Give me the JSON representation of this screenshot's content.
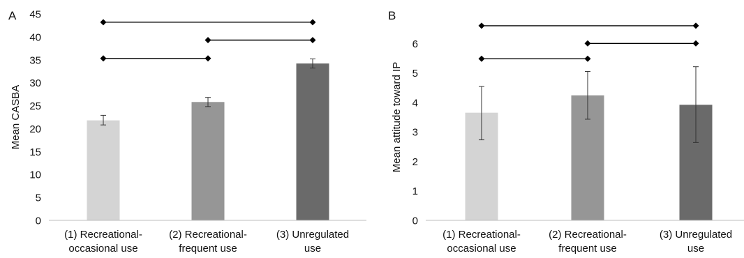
{
  "chart_data": [
    {
      "panel": "A",
      "type": "bar",
      "ylabel": "Mean CASBA",
      "ylim": [
        0,
        45
      ],
      "yticks": [
        "0",
        "5",
        "10",
        "15",
        "20",
        "25",
        "30",
        "35",
        "40",
        "45"
      ],
      "categories": [
        [
          "(1) Recreational-",
          "occasional use"
        ],
        [
          "(2) Recreational-",
          "frequent use"
        ],
        [
          "(3) Unregulated",
          "use"
        ]
      ],
      "values": [
        21.8,
        25.8,
        34.2
      ],
      "error_low": [
        20.8,
        24.8,
        33.2
      ],
      "error_high": [
        22.9,
        26.8,
        35.2
      ],
      "bar_colors": [
        "#d4d4d4",
        "#969696",
        "#6a6a6a"
      ],
      "significance_brackets": [
        {
          "from": 1,
          "to": 3,
          "level": 43.2
        },
        {
          "from": 2,
          "to": 3,
          "level": 39.3
        },
        {
          "from": 1,
          "to": 2,
          "level": 35.3
        }
      ],
      "grid": false,
      "legend": "none"
    },
    {
      "panel": "B",
      "type": "bar",
      "ylabel": "Mean attitude toward IP",
      "ylim": [
        0,
        7
      ],
      "yticks": [
        "0",
        "1",
        "2",
        "3",
        "4",
        "5",
        "6"
      ],
      "categories": [
        [
          "(1) Recreational-",
          "occasional use"
        ],
        [
          "(2) Recreational-",
          "frequent use"
        ],
        [
          "(3) Unregulated",
          "use"
        ]
      ],
      "values": [
        3.65,
        4.24,
        3.92
      ],
      "error_low": [
        2.73,
        3.43,
        2.64
      ],
      "error_high": [
        4.54,
        5.05,
        5.21
      ],
      "bar_colors": [
        "#d4d4d4",
        "#969696",
        "#6a6a6a"
      ],
      "significance_brackets": [
        {
          "from": 1,
          "to": 3,
          "level": 6.6
        },
        {
          "from": 2,
          "to": 3,
          "level": 6.0
        },
        {
          "from": 1,
          "to": 2,
          "level": 5.48
        }
      ],
      "grid": false,
      "legend": "none"
    }
  ]
}
